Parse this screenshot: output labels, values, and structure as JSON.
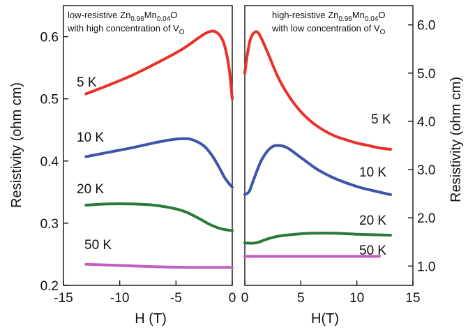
{
  "chart_data": [
    {
      "type": "line",
      "panel": "left",
      "note_line1": {
        "pre": "low-resistive Zn",
        "s1": "0.96",
        "mid": "Mn",
        "s2": "0.04",
        "post": "O"
      },
      "note_line2": {
        "pre": "with high concentration of V",
        "sub": "O"
      },
      "xlabel": "H (T)",
      "ylabel": "Resistivity (ohm cm)",
      "xlim": [
        -15,
        0
      ],
      "ylim": [
        0.2,
        0.65
      ],
      "x_ticks": [
        -15,
        -10,
        -5,
        0
      ],
      "x_tick_labels": [
        "-15",
        "-10",
        "-5",
        "0"
      ],
      "y_ticks": [
        0.2,
        0.3,
        0.4,
        0.5,
        0.6
      ],
      "y_tick_labels": [
        "0.2",
        "0.3",
        "0.4",
        "0.5",
        "0.6"
      ],
      "series": [
        {
          "name": "5 K",
          "color": "#e8312a",
          "points": [
            [
              -13,
              0.508
            ],
            [
              -11,
              0.522
            ],
            [
              -9,
              0.537
            ],
            [
              -7,
              0.555
            ],
            [
              -5,
              0.574
            ],
            [
              -4,
              0.585
            ],
            [
              -3,
              0.598
            ],
            [
              -2.3,
              0.606
            ],
            [
              -1.7,
              0.609
            ],
            [
              -1.2,
              0.604
            ],
            [
              -0.8,
              0.592
            ],
            [
              -0.5,
              0.572
            ],
            [
              -0.25,
              0.545
            ],
            [
              0,
              0.5
            ]
          ]
        },
        {
          "name": "10 K",
          "color": "#3c55a8",
          "points": [
            [
              -13,
              0.407
            ],
            [
              -11,
              0.414
            ],
            [
              -9,
              0.421
            ],
            [
              -7,
              0.429
            ],
            [
              -5.5,
              0.434
            ],
            [
              -4.3,
              0.436
            ],
            [
              -3.5,
              0.434
            ],
            [
              -2.5,
              0.424
            ],
            [
              -1.8,
              0.409
            ],
            [
              -1.2,
              0.391
            ],
            [
              -0.7,
              0.374
            ],
            [
              -0.3,
              0.364
            ],
            [
              0,
              0.358
            ]
          ]
        },
        {
          "name": "20 K",
          "color": "#2b7a38",
          "points": [
            [
              -13,
              0.329
            ],
            [
              -11,
              0.331
            ],
            [
              -9,
              0.331
            ],
            [
              -7,
              0.329
            ],
            [
              -5,
              0.323
            ],
            [
              -4,
              0.317
            ],
            [
              -3,
              0.308
            ],
            [
              -2,
              0.298
            ],
            [
              -1,
              0.291
            ],
            [
              0,
              0.288
            ]
          ]
        },
        {
          "name": "50 K",
          "color": "#c160c0",
          "points": [
            [
              -13,
              0.234
            ],
            [
              -10,
              0.232
            ],
            [
              -7,
              0.23
            ],
            [
              -4,
              0.229
            ],
            [
              0,
              0.229
            ]
          ]
        }
      ]
    },
    {
      "type": "line",
      "panel": "right",
      "note_line1": {
        "pre": "high-resistive Zn",
        "s1": "0.96",
        "mid": "Mn",
        "s2": "0.04",
        "post": "O"
      },
      "note_line2": {
        "pre": "with low concentration of V",
        "sub": "O"
      },
      "xlabel": "H(T)",
      "ylabel": "Resistivity (ohm cm)",
      "xlim": [
        0,
        15
      ],
      "ylim": [
        0.6,
        6.4
      ],
      "x_ticks": [
        0,
        5,
        10,
        15
      ],
      "x_tick_labels": [
        "0",
        "5",
        "10",
        "15"
      ],
      "y_ticks": [
        1.0,
        2.0,
        3.0,
        4.0,
        5.0,
        6.0
      ],
      "y_tick_labels": [
        "1.0",
        "2.0",
        "3.0",
        "4.0",
        "5.0",
        "6.0"
      ],
      "series": [
        {
          "name": "5 K",
          "color": "#e8312a",
          "points": [
            [
              0,
              5.0
            ],
            [
              0.2,
              5.35
            ],
            [
              0.5,
              5.7
            ],
            [
              0.9,
              5.85
            ],
            [
              1.3,
              5.8
            ],
            [
              2,
              5.45
            ],
            [
              3,
              4.9
            ],
            [
              4,
              4.5
            ],
            [
              5,
              4.2
            ],
            [
              6,
              3.98
            ],
            [
              7,
              3.82
            ],
            [
              8,
              3.7
            ],
            [
              9,
              3.62
            ],
            [
              10,
              3.55
            ],
            [
              11,
              3.5
            ],
            [
              12,
              3.45
            ],
            [
              13,
              3.42
            ]
          ]
        },
        {
          "name": "10 K",
          "color": "#3c55a8",
          "points": [
            [
              0,
              2.48
            ],
            [
              0.4,
              2.55
            ],
            [
              0.8,
              2.8
            ],
            [
              1.5,
              3.2
            ],
            [
              2.3,
              3.45
            ],
            [
              3,
              3.5
            ],
            [
              3.8,
              3.45
            ],
            [
              5,
              3.25
            ],
            [
              6.5,
              3.0
            ],
            [
              8,
              2.82
            ],
            [
              10,
              2.65
            ],
            [
              11.5,
              2.56
            ],
            [
              13,
              2.48
            ]
          ]
        },
        {
          "name": "20 K",
          "color": "#2b7a38",
          "points": [
            [
              0,
              1.48
            ],
            [
              1,
              1.48
            ],
            [
              2,
              1.56
            ],
            [
              3,
              1.62
            ],
            [
              4.5,
              1.66
            ],
            [
              6,
              1.68
            ],
            [
              8,
              1.68
            ],
            [
              10,
              1.66
            ],
            [
              13,
              1.64
            ]
          ]
        },
        {
          "name": "50 K",
          "color": "#c160c0",
          "points": [
            [
              0,
              1.2
            ],
            [
              4,
              1.2
            ],
            [
              8,
              1.2
            ],
            [
              12,
              1.2
            ]
          ]
        }
      ]
    }
  ]
}
